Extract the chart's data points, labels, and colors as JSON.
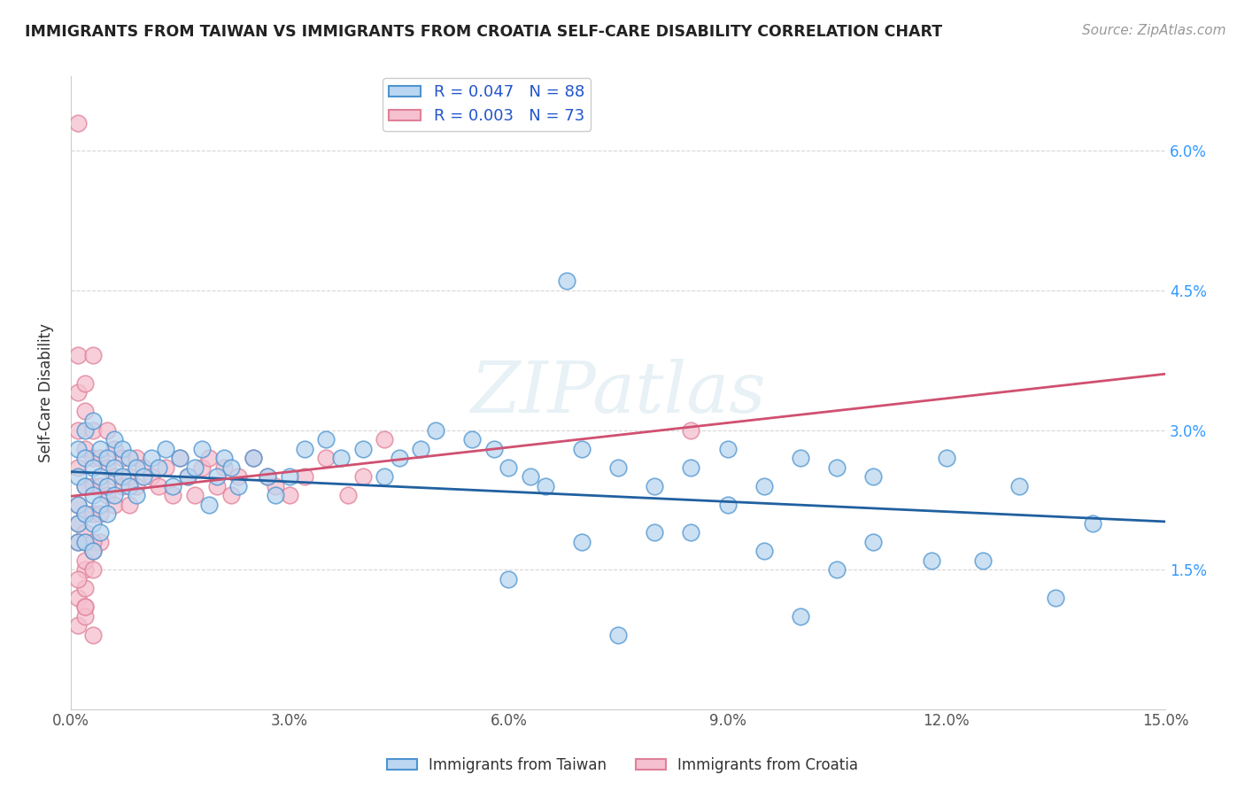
{
  "title": "IMMIGRANTS FROM TAIWAN VS IMMIGRANTS FROM CROATIA SELF-CARE DISABILITY CORRELATION CHART",
  "source": "Source: ZipAtlas.com",
  "ylabel": "Self-Care Disability",
  "xlim": [
    0.0,
    0.15
  ],
  "ylim": [
    0.0,
    0.068
  ],
  "xticks": [
    0.0,
    0.03,
    0.06,
    0.09,
    0.12,
    0.15
  ],
  "xtick_labels": [
    "0.0%",
    "3.0%",
    "6.0%",
    "9.0%",
    "12.0%",
    "15.0%"
  ],
  "yticks": [
    0.015,
    0.03,
    0.045,
    0.06
  ],
  "ytick_labels": [
    "1.5%",
    "3.0%",
    "4.5%",
    "6.0%"
  ],
  "taiwan_R": 0.047,
  "taiwan_N": 88,
  "croatia_R": 0.003,
  "croatia_N": 73,
  "taiwan_color": "#bad6f0",
  "taiwan_edge_color": "#4d94d0",
  "taiwan_line_color": "#2060a0",
  "croatia_color": "#f5c0d0",
  "croatia_edge_color": "#e08098",
  "croatia_line_color": "#d05070",
  "watermark": "ZIPatlas",
  "legend_labels": [
    "Immigrants from Taiwan",
    "Immigrants from Croatia"
  ],
  "taiwan_x": [
    0.001,
    0.001,
    0.001,
    0.001,
    0.001,
    0.002,
    0.002,
    0.002,
    0.002,
    0.002,
    0.003,
    0.003,
    0.003,
    0.003,
    0.003,
    0.004,
    0.004,
    0.004,
    0.004,
    0.005,
    0.005,
    0.005,
    0.006,
    0.006,
    0.006,
    0.007,
    0.007,
    0.008,
    0.008,
    0.009,
    0.009,
    0.01,
    0.011,
    0.012,
    0.013,
    0.014,
    0.015,
    0.016,
    0.017,
    0.018,
    0.019,
    0.02,
    0.021,
    0.022,
    0.023,
    0.025,
    0.027,
    0.028,
    0.03,
    0.032,
    0.035,
    0.037,
    0.04,
    0.043,
    0.045,
    0.048,
    0.05,
    0.055,
    0.058,
    0.06,
    0.063,
    0.065,
    0.068,
    0.07,
    0.075,
    0.08,
    0.085,
    0.09,
    0.095,
    0.1,
    0.105,
    0.11,
    0.12,
    0.125,
    0.13,
    0.135,
    0.14,
    0.08,
    0.09,
    0.1,
    0.11,
    0.118,
    0.06,
    0.07,
    0.075,
    0.085,
    0.095,
    0.105
  ],
  "taiwan_y": [
    0.028,
    0.025,
    0.022,
    0.02,
    0.018,
    0.03,
    0.027,
    0.024,
    0.021,
    0.018,
    0.026,
    0.023,
    0.02,
    0.017,
    0.031,
    0.028,
    0.025,
    0.022,
    0.019,
    0.027,
    0.024,
    0.021,
    0.029,
    0.026,
    0.023,
    0.028,
    0.025,
    0.027,
    0.024,
    0.026,
    0.023,
    0.025,
    0.027,
    0.026,
    0.028,
    0.024,
    0.027,
    0.025,
    0.026,
    0.028,
    0.022,
    0.025,
    0.027,
    0.026,
    0.024,
    0.027,
    0.025,
    0.023,
    0.025,
    0.028,
    0.029,
    0.027,
    0.028,
    0.025,
    0.027,
    0.028,
    0.03,
    0.029,
    0.028,
    0.026,
    0.025,
    0.024,
    0.046,
    0.028,
    0.026,
    0.024,
    0.026,
    0.028,
    0.024,
    0.027,
    0.026,
    0.025,
    0.027,
    0.016,
    0.024,
    0.012,
    0.02,
    0.019,
    0.022,
    0.01,
    0.018,
    0.016,
    0.014,
    0.018,
    0.008,
    0.019,
    0.017,
    0.015
  ],
  "croatia_x": [
    0.001,
    0.001,
    0.001,
    0.001,
    0.001,
    0.001,
    0.001,
    0.001,
    0.002,
    0.002,
    0.002,
    0.002,
    0.002,
    0.002,
    0.002,
    0.003,
    0.003,
    0.003,
    0.003,
    0.003,
    0.004,
    0.004,
    0.004,
    0.004,
    0.005,
    0.005,
    0.005,
    0.006,
    0.006,
    0.006,
    0.007,
    0.007,
    0.008,
    0.008,
    0.009,
    0.009,
    0.01,
    0.011,
    0.012,
    0.013,
    0.014,
    0.015,
    0.016,
    0.017,
    0.018,
    0.019,
    0.02,
    0.021,
    0.022,
    0.023,
    0.025,
    0.027,
    0.028,
    0.03,
    0.032,
    0.035,
    0.038,
    0.04,
    0.043,
    0.002,
    0.003,
    0.002,
    0.003,
    0.001,
    0.002,
    0.002,
    0.001,
    0.002,
    0.003,
    0.001,
    0.002,
    0.003,
    0.085
  ],
  "croatia_y": [
    0.063,
    0.038,
    0.034,
    0.03,
    0.026,
    0.022,
    0.02,
    0.018,
    0.035,
    0.032,
    0.028,
    0.024,
    0.021,
    0.018,
    0.015,
    0.03,
    0.027,
    0.024,
    0.021,
    0.038,
    0.027,
    0.024,
    0.021,
    0.018,
    0.03,
    0.026,
    0.023,
    0.028,
    0.025,
    0.022,
    0.027,
    0.024,
    0.025,
    0.022,
    0.027,
    0.024,
    0.026,
    0.025,
    0.024,
    0.026,
    0.023,
    0.027,
    0.025,
    0.023,
    0.026,
    0.027,
    0.024,
    0.026,
    0.023,
    0.025,
    0.027,
    0.025,
    0.024,
    0.023,
    0.025,
    0.027,
    0.023,
    0.025,
    0.029,
    0.019,
    0.018,
    0.016,
    0.015,
    0.012,
    0.013,
    0.011,
    0.009,
    0.01,
    0.008,
    0.014,
    0.011,
    0.017,
    0.03
  ]
}
